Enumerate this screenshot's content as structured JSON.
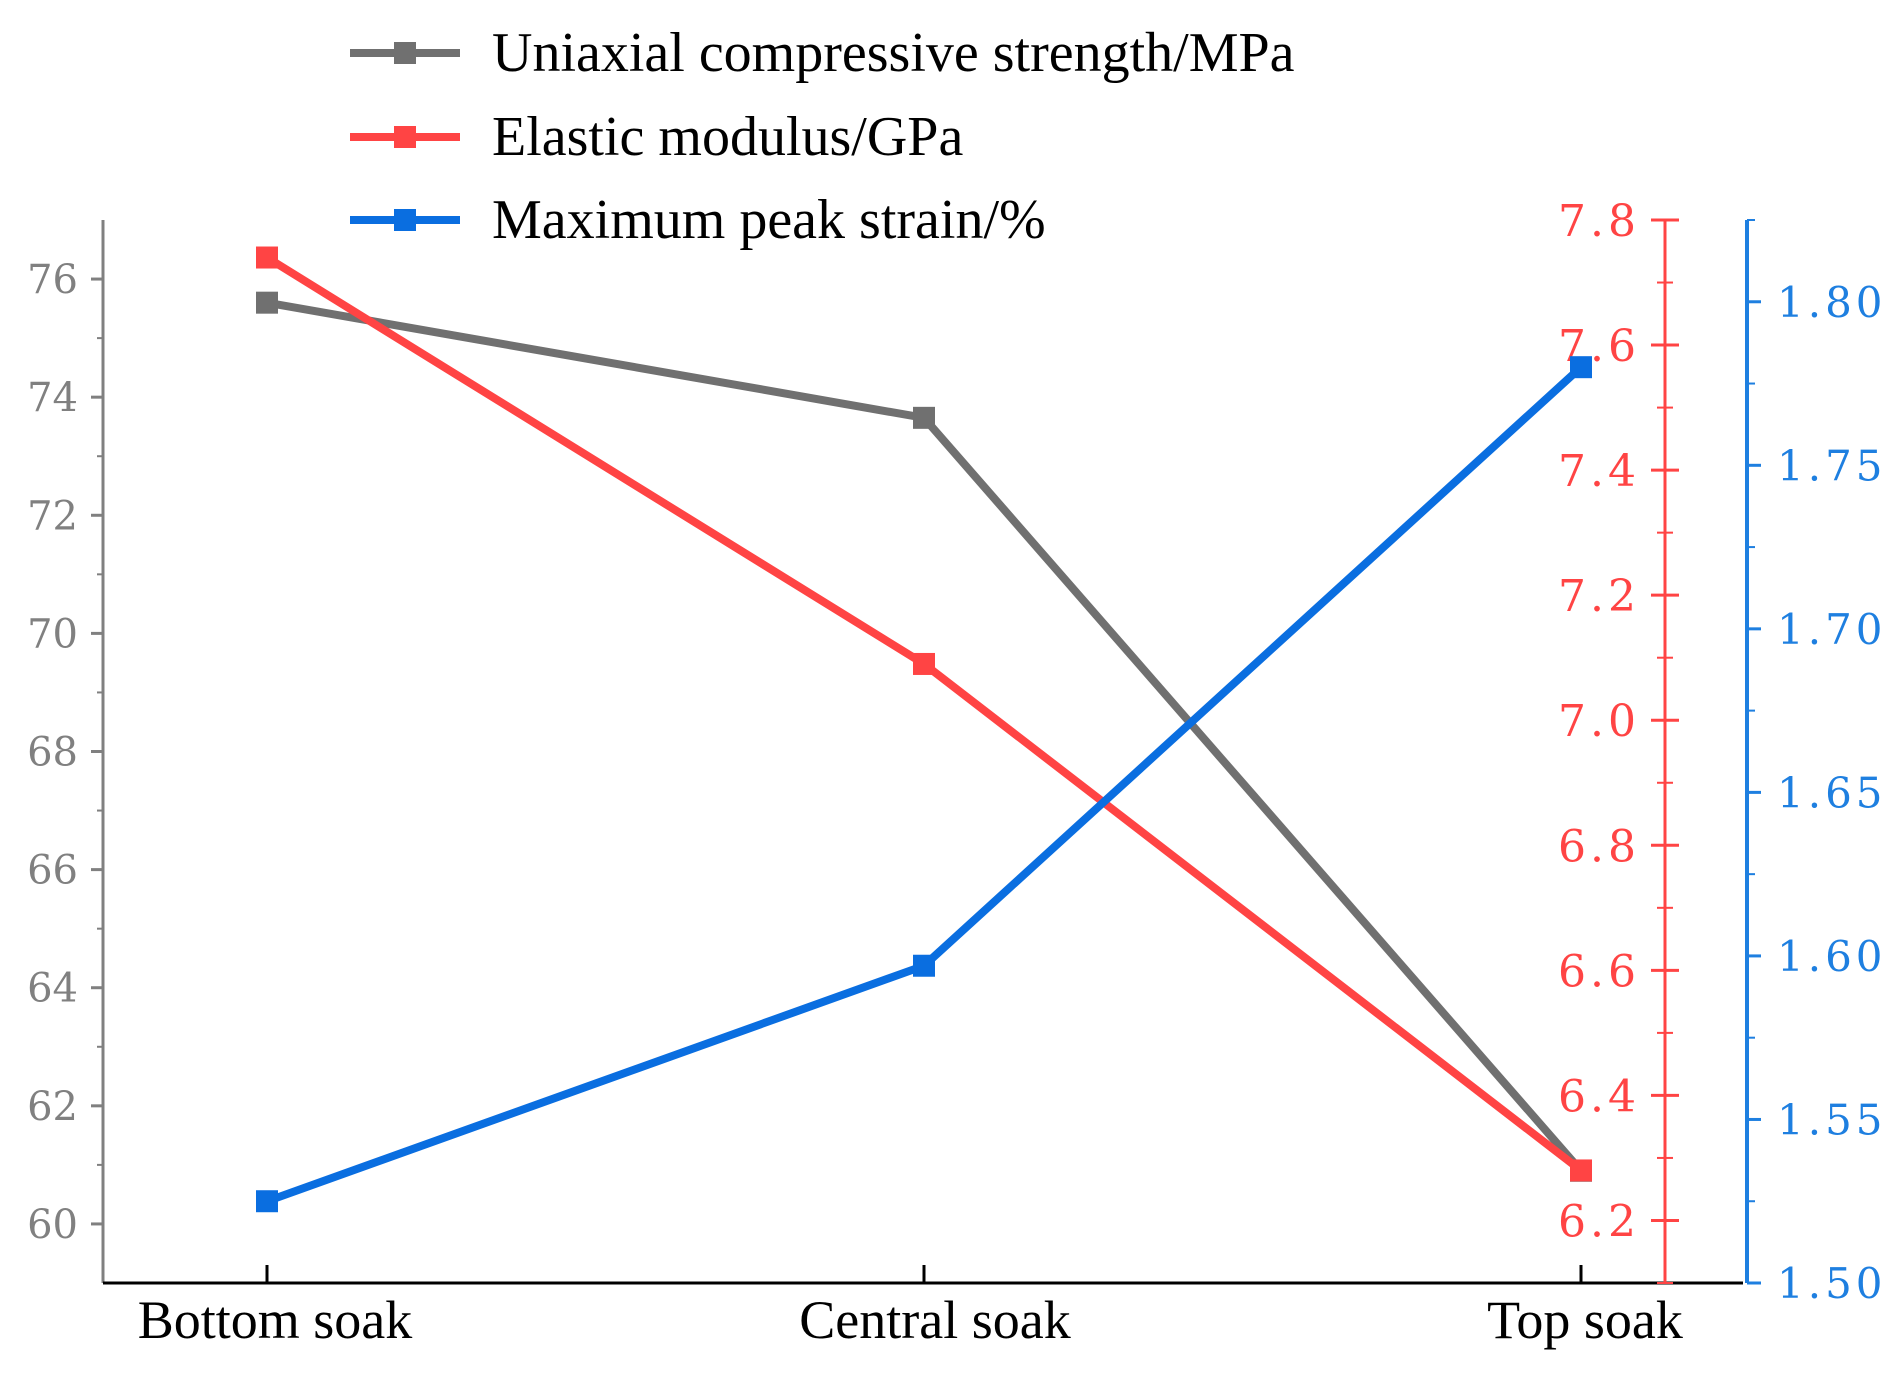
{
  "chart_data": {
    "type": "line",
    "categories": [
      "Bottom soak",
      "Central soak",
      "Top soak"
    ],
    "series": [
      {
        "name": "Uniaxial compressive strength/MPa",
        "axis": "left",
        "color": "#707070",
        "values": [
          75.6,
          73.65,
          60.9
        ]
      },
      {
        "name": "Elastic modulus/GPa",
        "axis": "right_red",
        "color": "#ff4444",
        "values": [
          7.74,
          7.09,
          6.28
        ]
      },
      {
        "name": "Maximum peak strain/%",
        "axis": "right_blue",
        "color": "#0a6ee0",
        "values": [
          1.525,
          1.597,
          1.78
        ]
      }
    ],
    "axes": {
      "left": {
        "color": "#808080",
        "ylim": [
          59,
          77
        ],
        "ticks": [
          "60",
          "62",
          "64",
          "66",
          "68",
          "70",
          "72",
          "74",
          "76"
        ]
      },
      "right_red": {
        "color": "#ff4444",
        "ylim": [
          6.1,
          7.8
        ],
        "ticks": [
          "6.2",
          "6.4",
          "6.6",
          "6.8",
          "7.0",
          "7.2",
          "7.4",
          "7.6",
          "7.8"
        ]
      },
      "right_blue": {
        "color": "#1e7fe0",
        "ylim": [
          1.5,
          1.825
        ],
        "ticks": [
          "1.50",
          "1.55",
          "1.60",
          "1.65",
          "1.70",
          "1.75",
          "1.80"
        ]
      }
    },
    "legend_position": "top-center",
    "grid": false
  }
}
